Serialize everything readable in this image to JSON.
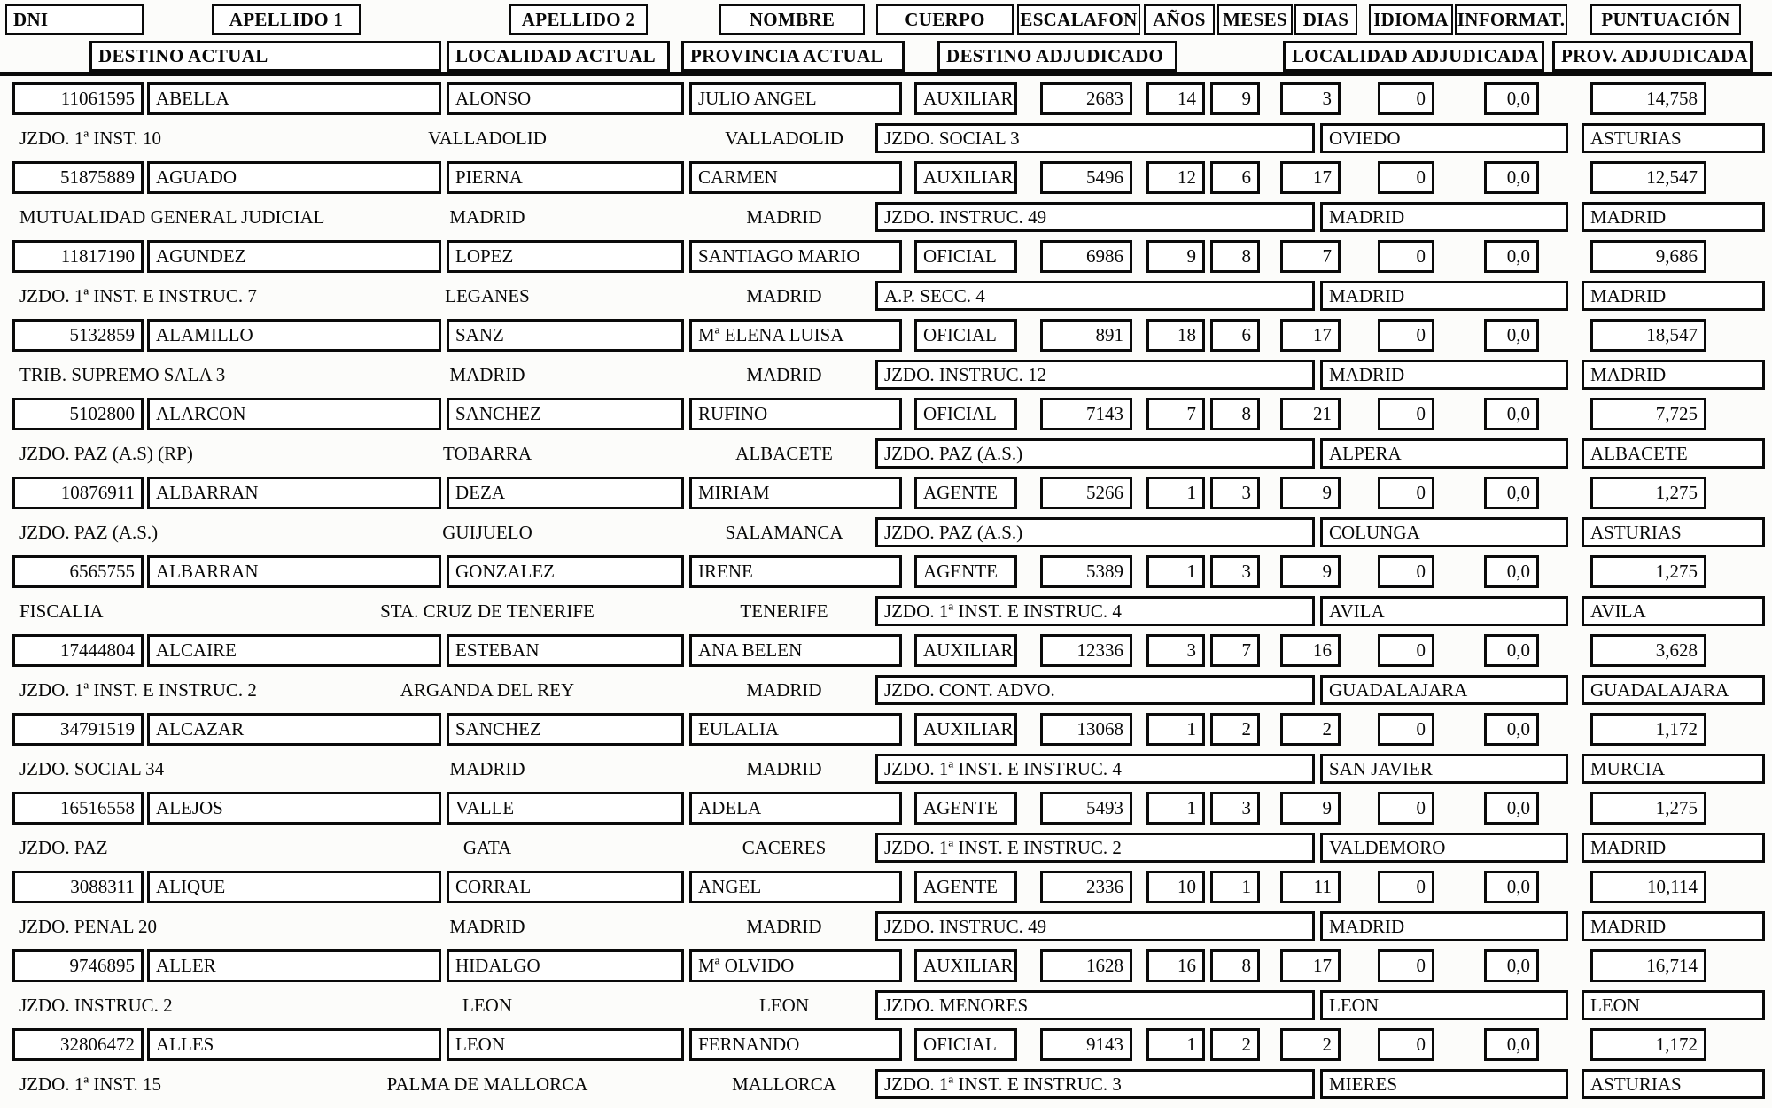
{
  "header_row1": {
    "dni": "DNI",
    "apellido1": "APELLIDO 1",
    "apellido2": "APELLIDO 2",
    "nombre": "NOMBRE",
    "cuerpo": "CUERPO",
    "escalafon": "ESCALAFON",
    "anos": "AÑOS",
    "meses": "MESES",
    "dias": "DIAS",
    "idioma": "IDIOMA",
    "informat": "INFORMAT.",
    "puntuacion": "PUNTUACIÓN"
  },
  "header_row2": {
    "destino_actual": "DESTINO ACTUAL",
    "localidad_actual": "LOCALIDAD ACTUAL",
    "provincia_actual": "PROVINCIA ACTUAL",
    "destino_adjudicado": "DESTINO ADJUDICADO",
    "localidad_adjudicada": "LOCALIDAD ADJUDICADA",
    "prov_adjudicada": "PROV. ADJUDICADA"
  },
  "colors": {
    "ink": "#0a0a0a",
    "paper": "#fcfcfa"
  },
  "rows": [
    {
      "dni": "11061595",
      "apellido1": "ABELLA",
      "apellido2": "ALONSO",
      "nombre": "JULIO ANGEL",
      "cuerpo": "AUXILIAR",
      "escalafon": "2683",
      "anos": "14",
      "meses": "9",
      "dias": "3",
      "idioma": "0",
      "informat": "0,0",
      "puntuacion": "14,758",
      "destino_actual": "JZDO. 1ª  INST. 10",
      "localidad_actual": "VALLADOLID",
      "provincia_actual": "VALLADOLID",
      "destino_adjudicado": "JZDO. SOCIAL 3",
      "localidad_adjudicada": "OVIEDO",
      "prov_adjudicada": "ASTURIAS"
    },
    {
      "dni": "51875889",
      "apellido1": "AGUADO",
      "apellido2": "PIERNA",
      "nombre": "CARMEN",
      "cuerpo": "AUXILIAR",
      "escalafon": "5496",
      "anos": "12",
      "meses": "6",
      "dias": "17",
      "idioma": "0",
      "informat": "0,0",
      "puntuacion": "12,547",
      "destino_actual": "MUTUALIDAD GENERAL JUDICIAL",
      "localidad_actual": "MADRID",
      "provincia_actual": "MADRID",
      "destino_adjudicado": "JZDO. INSTRUC. 49",
      "localidad_adjudicada": "MADRID",
      "prov_adjudicada": "MADRID"
    },
    {
      "dni": "11817190",
      "apellido1": "AGUNDEZ",
      "apellido2": "LOPEZ",
      "nombre": "SANTIAGO MARIO",
      "cuerpo": "OFICIAL",
      "escalafon": "6986",
      "anos": "9",
      "meses": "8",
      "dias": "7",
      "idioma": "0",
      "informat": "0,0",
      "puntuacion": "9,686",
      "destino_actual": "JZDO. 1ª INST. E INSTRUC. 7",
      "localidad_actual": "LEGANES",
      "provincia_actual": "MADRID",
      "destino_adjudicado": "A.P. SECC. 4",
      "localidad_adjudicada": "MADRID",
      "prov_adjudicada": "MADRID"
    },
    {
      "dni": "5132859",
      "apellido1": "ALAMILLO",
      "apellido2": "SANZ",
      "nombre": "Mª ELENA LUISA",
      "cuerpo": "OFICIAL",
      "escalafon": "891",
      "anos": "18",
      "meses": "6",
      "dias": "17",
      "idioma": "0",
      "informat": "0,0",
      "puntuacion": "18,547",
      "destino_actual": "TRIB. SUPREMO SALA 3",
      "localidad_actual": "MADRID",
      "provincia_actual": "MADRID",
      "destino_adjudicado": "JZDO. INSTRUC. 12",
      "localidad_adjudicada": "MADRID",
      "prov_adjudicada": "MADRID"
    },
    {
      "dni": "5102800",
      "apellido1": "ALARCON",
      "apellido2": "SANCHEZ",
      "nombre": "RUFINO",
      "cuerpo": "OFICIAL",
      "escalafon": "7143",
      "anos": "7",
      "meses": "8",
      "dias": "21",
      "idioma": "0",
      "informat": "0,0",
      "puntuacion": "7,725",
      "destino_actual": "JZDO. PAZ (A.S) (RP)",
      "localidad_actual": "TOBARRA",
      "provincia_actual": "ALBACETE",
      "destino_adjudicado": "JZDO. PAZ (A.S.)",
      "localidad_adjudicada": "ALPERA",
      "prov_adjudicada": "ALBACETE"
    },
    {
      "dni": "10876911",
      "apellido1": "ALBARRAN",
      "apellido2": "DEZA",
      "nombre": "MIRIAM",
      "cuerpo": "AGENTE",
      "escalafon": "5266",
      "anos": "1",
      "meses": "3",
      "dias": "9",
      "idioma": "0",
      "informat": "0,0",
      "puntuacion": "1,275",
      "destino_actual": "JZDO. PAZ (A.S.)",
      "localidad_actual": "GUIJUELO",
      "provincia_actual": "SALAMANCA",
      "destino_adjudicado": "JZDO. PAZ (A.S.)",
      "localidad_adjudicada": "COLUNGA",
      "prov_adjudicada": "ASTURIAS"
    },
    {
      "dni": "6565755",
      "apellido1": "ALBARRAN",
      "apellido2": "GONZALEZ",
      "nombre": "IRENE",
      "cuerpo": "AGENTE",
      "escalafon": "5389",
      "anos": "1",
      "meses": "3",
      "dias": "9",
      "idioma": "0",
      "informat": "0,0",
      "puntuacion": "1,275",
      "destino_actual": "FISCALIA",
      "localidad_actual": "STA. CRUZ DE TENERIFE",
      "provincia_actual": "TENERIFE",
      "destino_adjudicado": "JZDO. 1ª INST. E INSTRUC. 4",
      "localidad_adjudicada": "AVILA",
      "prov_adjudicada": "AVILA"
    },
    {
      "dni": "17444804",
      "apellido1": "ALCAIRE",
      "apellido2": "ESTEBAN",
      "nombre": "ANA BELEN",
      "cuerpo": "AUXILIAR",
      "escalafon": "12336",
      "anos": "3",
      "meses": "7",
      "dias": "16",
      "idioma": "0",
      "informat": "0,0",
      "puntuacion": "3,628",
      "destino_actual": "JZDO. 1ª INST. E INSTRUC. 2",
      "localidad_actual": "ARGANDA DEL REY",
      "provincia_actual": "MADRID",
      "destino_adjudicado": "JZDO. CONT. ADVO.",
      "localidad_adjudicada": "GUADALAJARA",
      "prov_adjudicada": "GUADALAJARA"
    },
    {
      "dni": "34791519",
      "apellido1": "ALCAZAR",
      "apellido2": "SANCHEZ",
      "nombre": "EULALIA",
      "cuerpo": "AUXILIAR",
      "escalafon": "13068",
      "anos": "1",
      "meses": "2",
      "dias": "2",
      "idioma": "0",
      "informat": "0,0",
      "puntuacion": "1,172",
      "destino_actual": "JZDO. SOCIAL 34",
      "localidad_actual": "MADRID",
      "provincia_actual": "MADRID",
      "destino_adjudicado": "JZDO. 1ª INST. E INSTRUC. 4",
      "localidad_adjudicada": "SAN JAVIER",
      "prov_adjudicada": "MURCIA"
    },
    {
      "dni": "16516558",
      "apellido1": "ALEJOS",
      "apellido2": "VALLE",
      "nombre": "ADELA",
      "cuerpo": "AGENTE",
      "escalafon": "5493",
      "anos": "1",
      "meses": "3",
      "dias": "9",
      "idioma": "0",
      "informat": "0,0",
      "puntuacion": "1,275",
      "destino_actual": "JZDO. PAZ",
      "localidad_actual": "GATA",
      "provincia_actual": "CACERES",
      "destino_adjudicado": "JZDO. 1ª INST. E INSTRUC. 2",
      "localidad_adjudicada": "VALDEMORO",
      "prov_adjudicada": "MADRID"
    },
    {
      "dni": "3088311",
      "apellido1": "ALIQUE",
      "apellido2": "CORRAL",
      "nombre": "ANGEL",
      "cuerpo": "AGENTE",
      "escalafon": "2336",
      "anos": "10",
      "meses": "1",
      "dias": "11",
      "idioma": "0",
      "informat": "0,0",
      "puntuacion": "10,114",
      "destino_actual": "JZDO. PENAL 20",
      "localidad_actual": "MADRID",
      "provincia_actual": "MADRID",
      "destino_adjudicado": "JZDO. INSTRUC. 49",
      "localidad_adjudicada": "MADRID",
      "prov_adjudicada": "MADRID"
    },
    {
      "dni": "9746895",
      "apellido1": "ALLER",
      "apellido2": "HIDALGO",
      "nombre": "Mª OLVIDO",
      "cuerpo": "AUXILIAR",
      "escalafon": "1628",
      "anos": "16",
      "meses": "8",
      "dias": "17",
      "idioma": "0",
      "informat": "0,0",
      "puntuacion": "16,714",
      "destino_actual": "JZDO. INSTRUC. 2",
      "localidad_actual": "LEON",
      "provincia_actual": "LEON",
      "destino_adjudicado": "JZDO. MENORES",
      "localidad_adjudicada": "LEON",
      "prov_adjudicada": "LEON"
    },
    {
      "dni": "32806472",
      "apellido1": "ALLES",
      "apellido2": "LEON",
      "nombre": "FERNANDO",
      "cuerpo": "OFICIAL",
      "escalafon": "9143",
      "anos": "1",
      "meses": "2",
      "dias": "2",
      "idioma": "0",
      "informat": "0,0",
      "puntuacion": "1,172",
      "destino_actual": "JZDO. 1ª  INST. 15",
      "localidad_actual": "PALMA DE MALLORCA",
      "provincia_actual": "MALLORCA",
      "destino_adjudicado": "JZDO. 1ª INST. E INSTRUC. 3",
      "localidad_adjudicada": "MIERES",
      "prov_adjudicada": "ASTURIAS"
    }
  ]
}
